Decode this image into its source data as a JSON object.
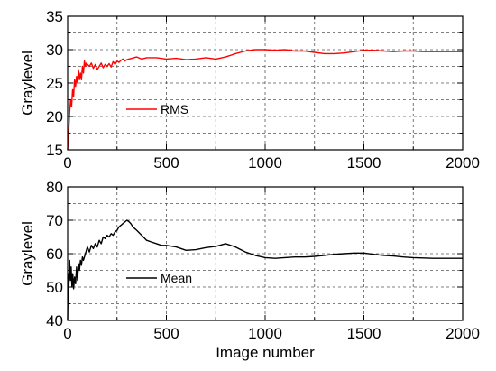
{
  "chart_data": [
    {
      "type": "line",
      "title": "",
      "xlabel": "",
      "ylabel": "Graylevel",
      "xlim": [
        0,
        2000
      ],
      "ylim": [
        15,
        35
      ],
      "x_ticks": [
        0,
        500,
        1000,
        1500,
        2000
      ],
      "x_tick_labels": [
        "0",
        "500",
        "1000",
        "1500",
        "2000"
      ],
      "y_ticks": [
        15,
        20,
        25,
        30,
        35
      ],
      "y_tick_labels": [
        "15",
        "20",
        "25",
        "30",
        "35"
      ],
      "grid": true,
      "legend_position": "center-left",
      "series": [
        {
          "name": "RMS",
          "color": "#ff0000",
          "x": [
            0,
            5,
            10,
            15,
            20,
            25,
            30,
            35,
            40,
            45,
            50,
            55,
            60,
            65,
            70,
            75,
            80,
            85,
            90,
            95,
            100,
            110,
            120,
            130,
            140,
            150,
            160,
            170,
            180,
            190,
            200,
            210,
            220,
            230,
            240,
            250,
            260,
            270,
            280,
            290,
            300,
            325,
            350,
            375,
            400,
            450,
            500,
            550,
            600,
            650,
            700,
            750,
            800,
            850,
            900,
            950,
            1000,
            1050,
            1100,
            1150,
            1200,
            1250,
            1300,
            1350,
            1400,
            1450,
            1500,
            1550,
            1600,
            1650,
            1700,
            1750,
            1800,
            1850,
            1900,
            1950,
            2000
          ],
          "y": [
            15.0,
            17.5,
            20.5,
            22.5,
            21.5,
            24.0,
            23.0,
            25.5,
            24.5,
            26.0,
            25.0,
            27.0,
            25.5,
            26.5,
            25.5,
            27.5,
            26.5,
            28.3,
            27.5,
            28.0,
            27.8,
            27.5,
            28.0,
            27.2,
            27.8,
            27.0,
            27.5,
            28.0,
            27.3,
            27.8,
            27.5,
            27.9,
            27.4,
            28.2,
            27.8,
            28.3,
            28.1,
            28.4,
            28.6,
            28.3,
            28.5,
            28.7,
            28.9,
            28.6,
            28.8,
            28.8,
            28.6,
            28.7,
            28.5,
            28.6,
            28.8,
            28.6,
            28.9,
            29.4,
            29.8,
            30.0,
            30.0,
            29.9,
            30.0,
            29.8,
            29.8,
            29.6,
            29.4,
            29.4,
            29.5,
            29.7,
            29.9,
            29.9,
            29.8,
            29.7,
            29.8,
            29.8,
            29.7,
            29.7,
            29.7,
            29.7,
            29.7
          ]
        }
      ]
    },
    {
      "type": "line",
      "title": "",
      "xlabel": "Image number",
      "ylabel": "Graylevel",
      "xlim": [
        0,
        2000
      ],
      "ylim": [
        40,
        80
      ],
      "x_ticks": [
        0,
        500,
        1000,
        1500,
        2000
      ],
      "x_tick_labels": [
        "0",
        "500",
        "1000",
        "1500",
        "2000"
      ],
      "y_ticks": [
        40,
        50,
        60,
        70,
        80
      ],
      "y_tick_labels": [
        "40",
        "50",
        "60",
        "70",
        "80"
      ],
      "grid": true,
      "legend_position": "bottom-left",
      "series": [
        {
          "name": "Mean",
          "color": "#000000",
          "x": [
            0,
            3,
            6,
            10,
            14,
            18,
            22,
            26,
            30,
            35,
            40,
            45,
            50,
            55,
            60,
            65,
            70,
            75,
            80,
            90,
            100,
            110,
            120,
            130,
            140,
            150,
            160,
            170,
            180,
            190,
            200,
            210,
            220,
            230,
            240,
            250,
            260,
            270,
            280,
            290,
            300,
            310,
            320,
            330,
            340,
            350,
            375,
            400,
            425,
            450,
            475,
            500,
            550,
            600,
            650,
            700,
            750,
            800,
            850,
            900,
            950,
            1000,
            1050,
            1100,
            1150,
            1200,
            1250,
            1300,
            1350,
            1400,
            1450,
            1500,
            1550,
            1600,
            1650,
            1700,
            1750,
            1800,
            1850,
            1900,
            1950,
            2000
          ],
          "y": [
            40.0,
            54.0,
            50.0,
            58.0,
            52.0,
            56.0,
            50.0,
            54.0,
            49.5,
            53.0,
            51.0,
            56.0,
            52.0,
            57.0,
            55.0,
            58.0,
            56.5,
            59.0,
            58.0,
            60.0,
            62.0,
            60.5,
            62.5,
            61.5,
            63.0,
            62.0,
            64.0,
            63.0,
            65.0,
            64.5,
            65.5,
            65.0,
            66.0,
            65.5,
            66.5,
            67.0,
            68.0,
            68.5,
            69.0,
            69.5,
            70.0,
            69.6,
            69.0,
            68.0,
            67.5,
            67.0,
            65.5,
            64.0,
            63.5,
            63.0,
            62.5,
            62.5,
            62.0,
            61.0,
            61.2,
            61.8,
            62.2,
            63.0,
            62.0,
            60.5,
            59.5,
            58.8,
            58.6,
            58.8,
            59.0,
            59.0,
            59.2,
            59.5,
            59.8,
            60.0,
            60.2,
            60.2,
            59.8,
            59.5,
            59.3,
            59.0,
            58.8,
            58.7,
            58.6,
            58.6,
            58.6,
            58.6
          ]
        }
      ]
    }
  ]
}
